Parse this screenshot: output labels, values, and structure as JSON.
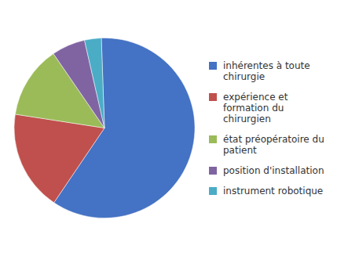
{
  "chart_data": {
    "type": "pie",
    "categories": [
      "inhérentes à toute\nchirurgie",
      "expérience et\nformation du\nchirurgien",
      "état préopératoire du\npatient",
      "position d'installation",
      "instrument robotique"
    ],
    "values": [
      60,
      18,
      13,
      6,
      3
    ],
    "colors": [
      "#4472C4",
      "#C0504D",
      "#9BBB59",
      "#8064A2",
      "#4BACC6"
    ],
    "legend": "right"
  }
}
